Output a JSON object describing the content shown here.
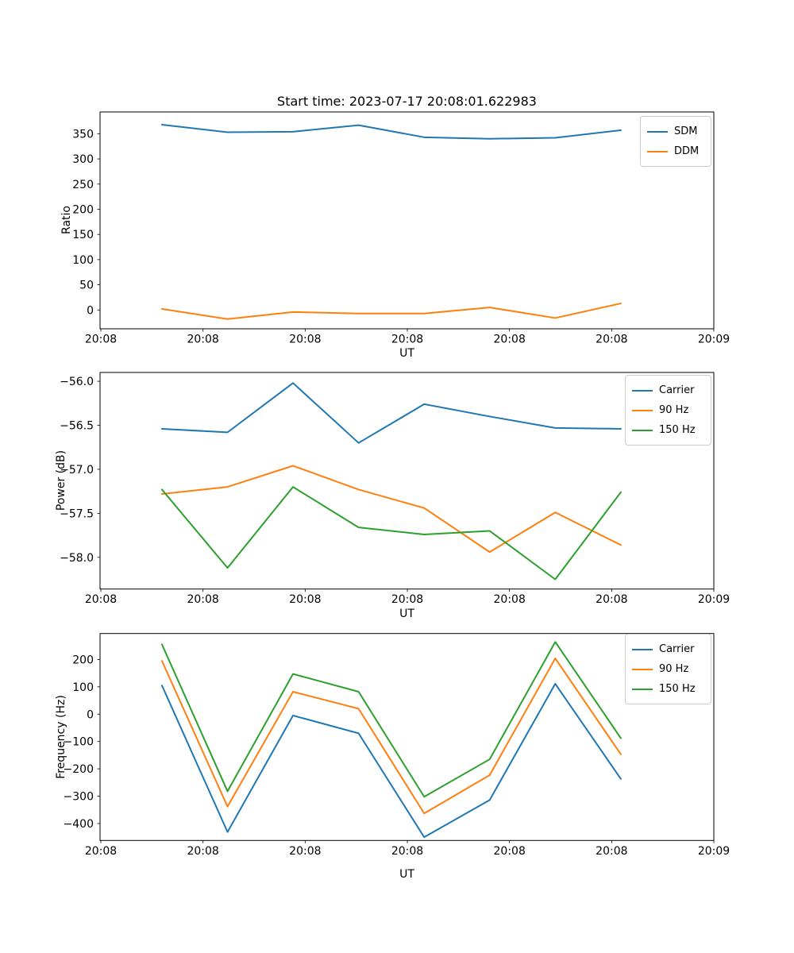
{
  "figure": {
    "title": "Start time: 2023-07-17 20:08:01.622983",
    "background_color": "#ffffff",
    "text_color": "#000000"
  },
  "chart_data": [
    {
      "type": "line",
      "title": "Start time: 2023-07-17 20:08:01.622983",
      "xlabel": "UT",
      "ylabel": "Ratio",
      "grid": false,
      "legend_position": "upper right",
      "xtick_labels": [
        "20:08",
        "20:08",
        "20:08",
        "20:08",
        "20:08",
        "20:08",
        "20:09"
      ],
      "xtick_seconds": [
        0,
        10,
        20,
        30,
        40,
        50,
        60
      ],
      "ytick_values": [
        0,
        50,
        100,
        150,
        200,
        250,
        300,
        350
      ],
      "ytick_labels": [
        "0",
        "50",
        "100",
        "150",
        "200",
        "250",
        "300",
        "350"
      ],
      "ylim": [
        -37.4,
        393.2
      ],
      "x_seconds": [
        5.98,
        12.4,
        18.81,
        25.23,
        31.65,
        38.06,
        44.48,
        50.9
      ],
      "series": [
        {
          "name": "SDM",
          "color": "#1f77b4",
          "values": [
            368,
            353,
            354,
            367,
            343,
            340,
            342,
            357
          ]
        },
        {
          "name": "DDM",
          "color": "#ff7f0e",
          "values": [
            2,
            -18,
            -4,
            -7,
            -7,
            5,
            -16,
            13
          ]
        }
      ]
    },
    {
      "type": "line",
      "title": "",
      "xlabel": "UT",
      "ylabel": "Power (dB)",
      "grid": false,
      "legend_position": "upper right",
      "xtick_labels": [
        "20:08",
        "20:08",
        "20:08",
        "20:08",
        "20:08",
        "20:08",
        "20:09"
      ],
      "xtick_seconds": [
        0,
        10,
        20,
        30,
        40,
        50,
        60
      ],
      "ytick_values": [
        -56.0,
        -56.5,
        -57.0,
        -57.5,
        -58.0
      ],
      "ytick_labels": [
        "−56.0",
        "−56.5",
        "−57.0",
        "−57.5",
        "−58.0"
      ],
      "ylim": [
        -58.36,
        -55.9
      ],
      "x_seconds": [
        5.98,
        12.4,
        18.81,
        25.23,
        31.65,
        38.06,
        44.48,
        50.9
      ],
      "series": [
        {
          "name": "Carrier",
          "color": "#1f77b4",
          "values": [
            -56.54,
            -56.58,
            -56.02,
            -56.7,
            -56.26,
            -56.4,
            -56.53,
            -56.54
          ]
        },
        {
          "name": "90 Hz",
          "color": "#ff7f0e",
          "values": [
            -57.28,
            -57.2,
            -56.96,
            -57.23,
            -57.44,
            -57.94,
            -57.49,
            -57.86
          ]
        },
        {
          "name": "150 Hz",
          "color": "#2ca02c",
          "values": [
            -57.23,
            -58.12,
            -57.2,
            -57.66,
            -57.74,
            -57.7,
            -58.25,
            -57.26
          ]
        }
      ]
    },
    {
      "type": "line",
      "title": "",
      "xlabel": "UT",
      "ylabel": "Frequency (Hz)",
      "grid": false,
      "legend_position": "upper right",
      "xtick_labels": [
        "20:08",
        "20:08",
        "20:08",
        "20:08",
        "20:08",
        "20:08",
        "20:09"
      ],
      "xtick_seconds": [
        0,
        10,
        20,
        30,
        40,
        50,
        60
      ],
      "ytick_values": [
        200,
        100,
        0,
        -100,
        -200,
        -300,
        -400
      ],
      "ytick_labels": [
        "200",
        "100",
        "0",
        "−100",
        "−200",
        "−300",
        "−400"
      ],
      "ylim": [
        -462,
        295
      ],
      "x_seconds": [
        5.98,
        12.4,
        18.81,
        25.23,
        31.65,
        38.06,
        44.48,
        50.9
      ],
      "series": [
        {
          "name": "Carrier",
          "color": "#1f77b4",
          "values": [
            105,
            -431,
            -5,
            -70,
            -450,
            -314,
            111,
            -237
          ]
        },
        {
          "name": "90 Hz",
          "color": "#ff7f0e",
          "values": [
            195,
            -338,
            82,
            20,
            -363,
            -223,
            204,
            -147
          ]
        },
        {
          "name": "150 Hz",
          "color": "#2ca02c",
          "values": [
            255,
            -282,
            147,
            82,
            -302,
            -165,
            264,
            -88
          ]
        }
      ]
    }
  ]
}
